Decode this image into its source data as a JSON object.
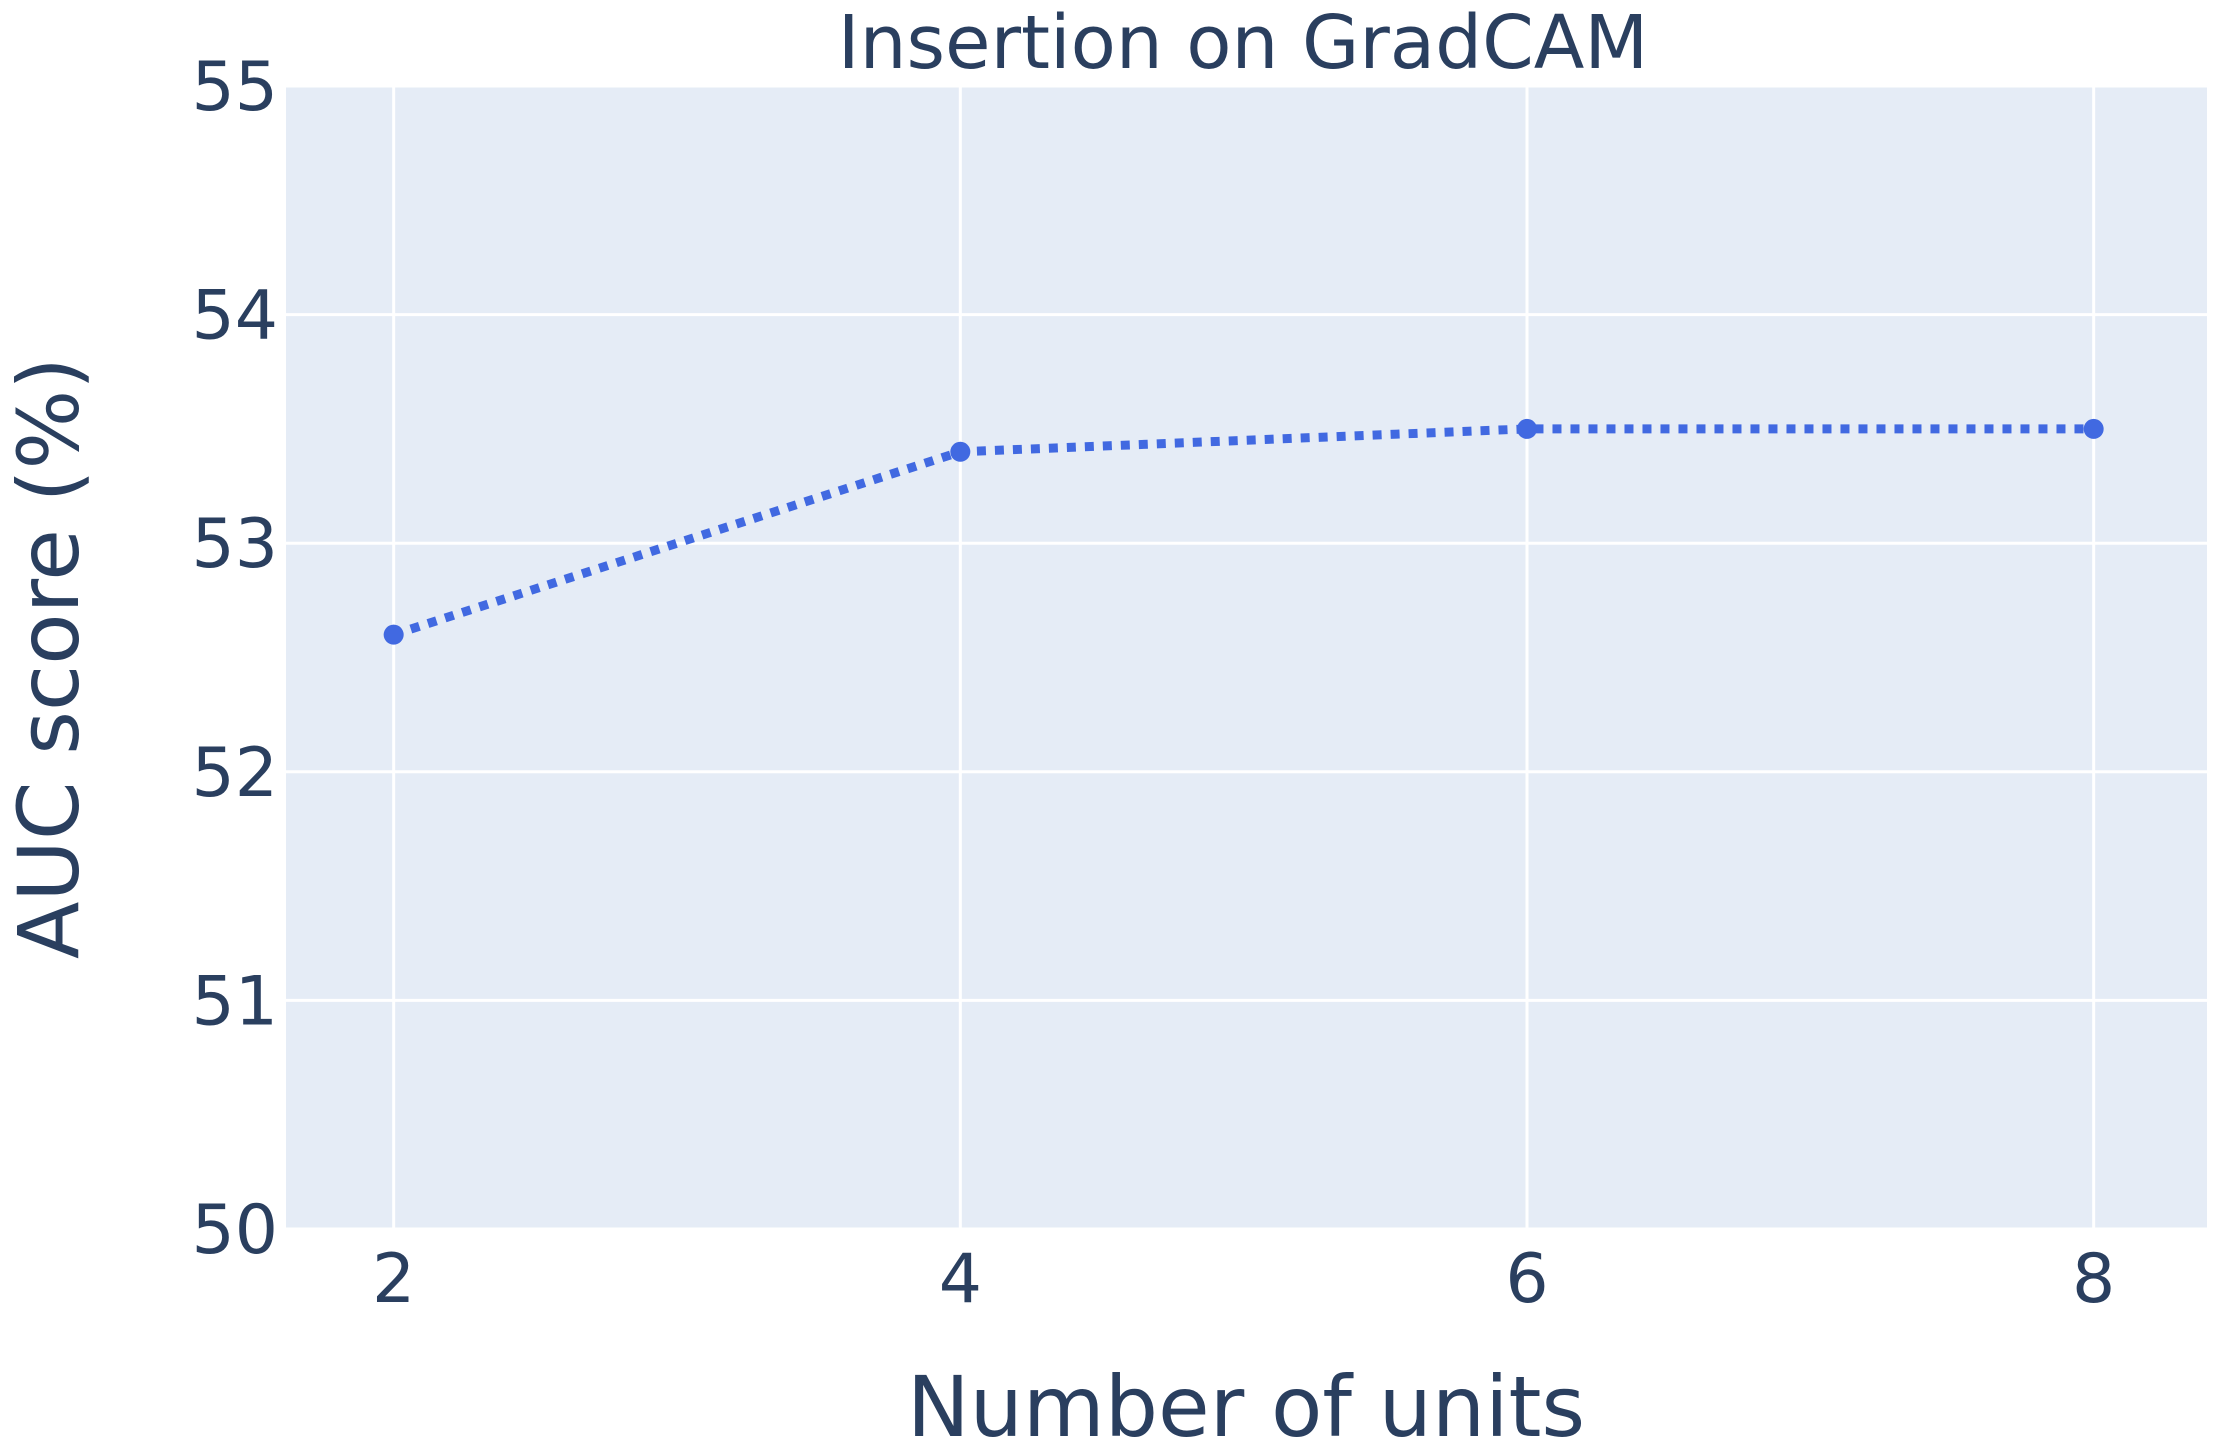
{
  "chart_data": {
    "type": "line",
    "title": "Insertion on GradCAM",
    "xlabel": "Number of units",
    "ylabel": "AUC score (%)",
    "x": [
      2,
      4,
      6,
      8
    ],
    "xticks": [
      "2",
      "4",
      "6",
      "8"
    ],
    "xlim": [
      1.62,
      8.4
    ],
    "yticks": [
      "50",
      "51",
      "52",
      "53",
      "54",
      "55"
    ],
    "ylim": [
      50,
      55
    ],
    "grid": true,
    "legend": "none",
    "line_style": "dotted",
    "series": [
      {
        "values": [
          52.6,
          53.4,
          53.5,
          53.5
        ]
      }
    ],
    "colors": {
      "series": "#4169e1",
      "plot_background": "#e5ecf6",
      "grid": "#ffffff",
      "text": "#2a3f5f"
    }
  }
}
